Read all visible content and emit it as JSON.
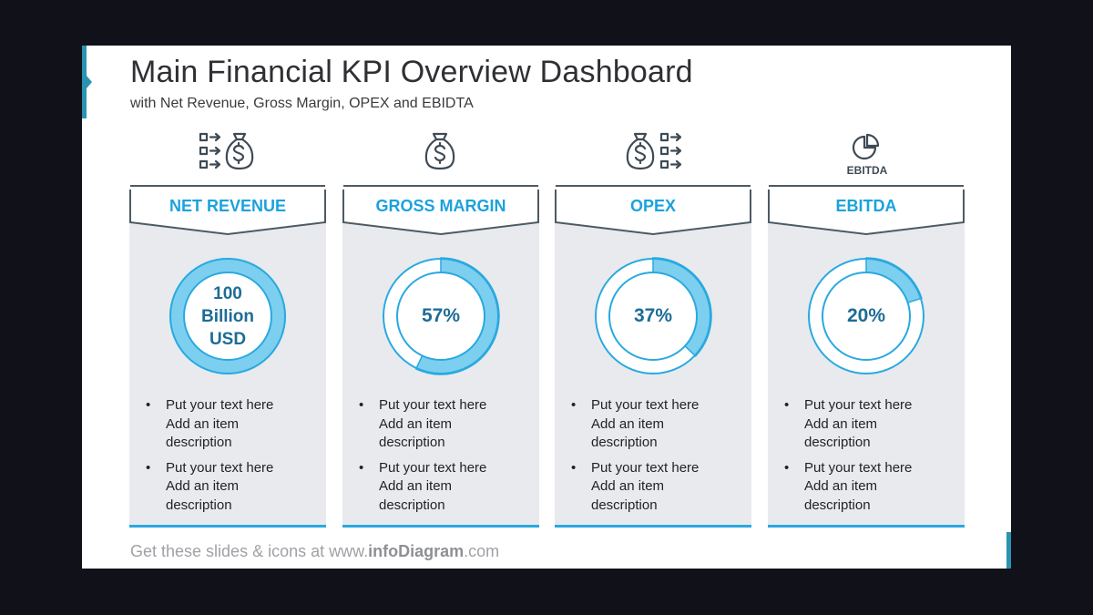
{
  "slide": {
    "title": "Main Financial KPI Overview Dashboard",
    "subtitle": "with Net Revenue, Gross Margin, OPEX and EBIDTA"
  },
  "colors": {
    "accent": "#1ca2dd",
    "donut_fill": "#7dcfef",
    "donut_stroke": "#29a9e0",
    "card_bg": "#e8eaee",
    "value_text": "#1d6c95",
    "frame_accent": "#2a93b1"
  },
  "cards": [
    {
      "title": "NET REVENUE",
      "icon": "money-bag-flow-icon",
      "value_lines": [
        "100",
        "Billion",
        "USD"
      ],
      "percent": 100,
      "bullets": [
        [
          "Put your text here",
          "Add an item",
          "description"
        ],
        [
          "Put your text here",
          "Add an item",
          "description"
        ]
      ]
    },
    {
      "title": "GROSS MARGIN",
      "icon": "money-bag-icon",
      "value": "57%",
      "percent": 57,
      "bullets": [
        [
          "Put your text here",
          "Add an item",
          "description"
        ],
        [
          "Put your text here",
          "Add an item",
          "description"
        ]
      ]
    },
    {
      "title": "OPEX",
      "icon": "money-bag-outflow-icon",
      "value": "37%",
      "percent": 37,
      "bullets": [
        [
          "Put your text here",
          "Add an item",
          "description"
        ],
        [
          "Put your text here",
          "Add an item",
          "description"
        ]
      ]
    },
    {
      "title": "EBITDA",
      "icon": "pie-chart-icon",
      "icon_label": "EBITDA",
      "value": "20%",
      "percent": 20,
      "bullets": [
        [
          "Put your text here",
          "Add an item",
          "description"
        ],
        [
          "Put your text here",
          "Add an item",
          "description"
        ]
      ]
    }
  ],
  "footer": {
    "prefix": "Get these slides & icons at www.",
    "brand": "infoDiagram",
    "suffix": ".com"
  }
}
